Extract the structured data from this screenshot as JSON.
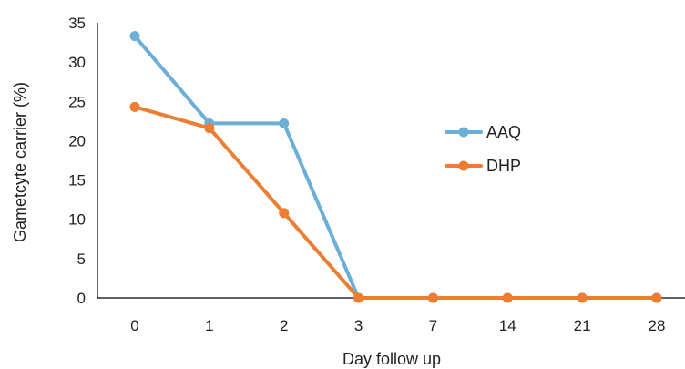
{
  "chart_data": {
    "type": "line",
    "title": "",
    "xlabel": "Day follow up",
    "ylabel": "Gametcyte carrier (%)",
    "categories": [
      "0",
      "1",
      "2",
      "3",
      "7",
      "14",
      "21",
      "28"
    ],
    "ylim": [
      0,
      35
    ],
    "yticks": [
      "0",
      "5",
      "10",
      "15",
      "20",
      "25",
      "30",
      "35"
    ],
    "grid": false,
    "legend_position": "center-right",
    "series": [
      {
        "name": "AAQ",
        "color": "#6BAED6",
        "values": [
          33.3,
          22.2,
          22.2,
          0,
          0,
          0,
          0,
          0
        ]
      },
      {
        "name": "DHP",
        "color": "#ED7D31",
        "values": [
          24.3,
          21.6,
          10.8,
          0,
          0,
          0,
          0,
          0
        ]
      }
    ]
  }
}
